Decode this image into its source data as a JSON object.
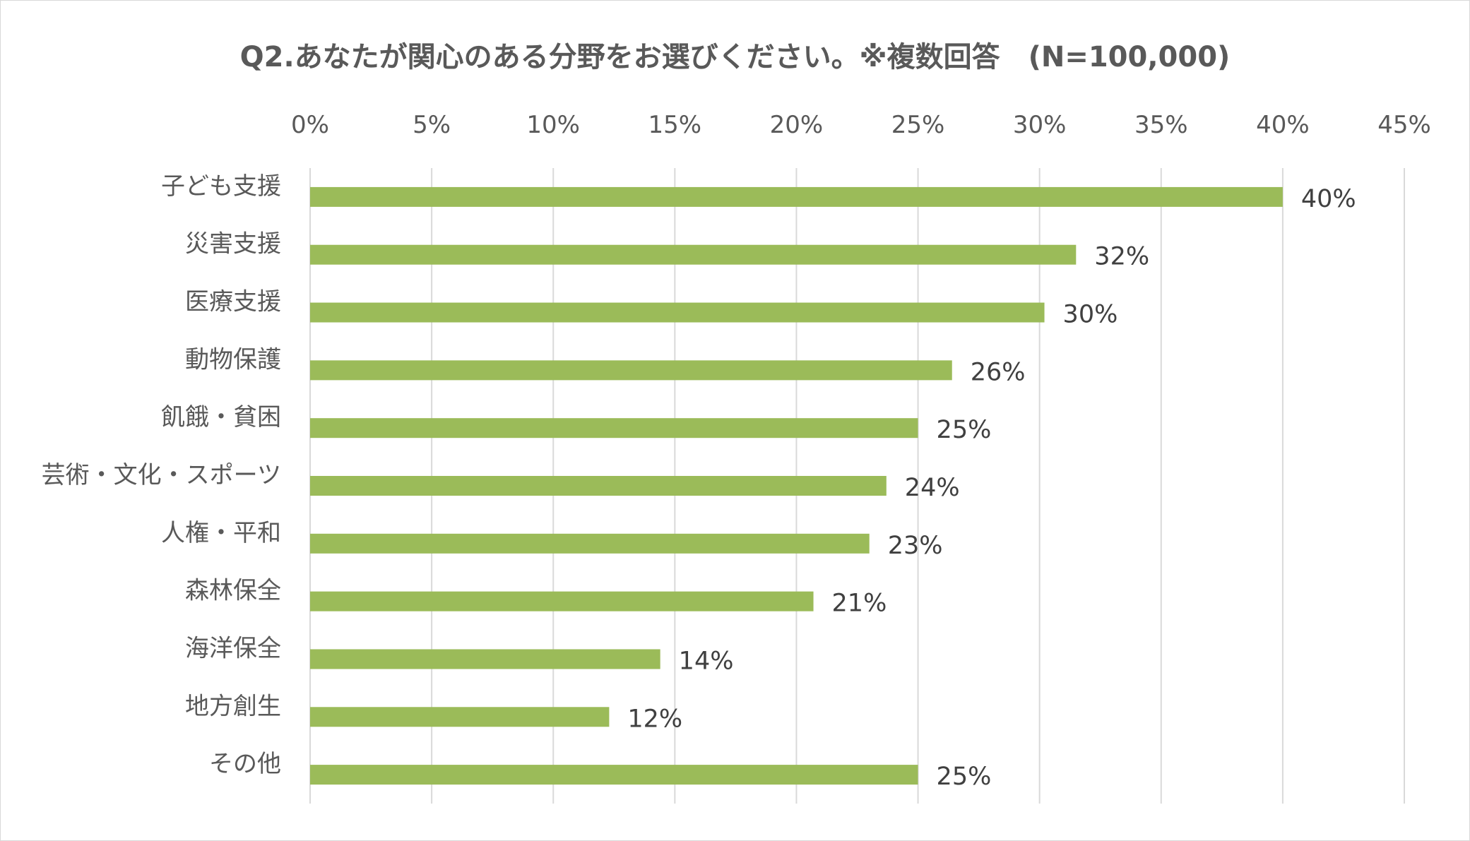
{
  "chart_data": {
    "type": "bar",
    "orientation": "horizontal",
    "title": "Q2.あなたが関心のある分野をお選びください。※複数回答　(N=100,000)",
    "xlabel": "",
    "ylabel": "",
    "xlim": [
      0,
      45
    ],
    "x_ticks": [
      "0%",
      "5%",
      "10%",
      "15%",
      "20%",
      "25%",
      "30%",
      "35%",
      "40%",
      "45%"
    ],
    "x_tick_values": [
      0,
      5,
      10,
      15,
      20,
      25,
      30,
      35,
      40,
      45
    ],
    "grid": true,
    "legend": "none",
    "categories": [
      "子ども支援",
      "災害支援",
      "医療支援",
      "動物保護",
      "飢餓・貧困",
      "芸術・文化・スポーツ",
      "人権・平和",
      "森林保全",
      "海洋保全",
      "地方創生",
      "その他"
    ],
    "values": [
      40,
      31.5,
      30.2,
      26.4,
      25,
      23.7,
      23,
      20.7,
      14.4,
      12.3,
      25
    ],
    "data_labels": [
      "40%",
      "32%",
      "30%",
      "26%",
      "25%",
      "24%",
      "23%",
      "21%",
      "14%",
      "12%",
      "25%"
    ],
    "bar_color": "#9bbb59",
    "grid_color": "#d9d9d9"
  }
}
